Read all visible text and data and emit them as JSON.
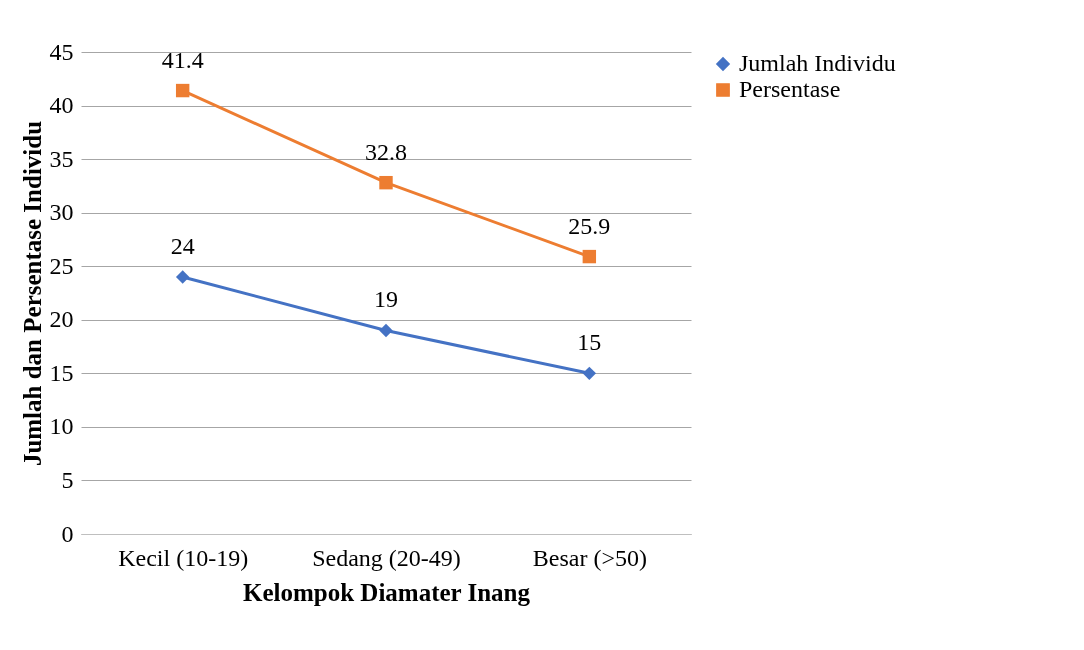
{
  "chart_data": {
    "type": "line",
    "xlabel": "Kelompok Diamater Inang",
    "ylabel": "Jumlah dan Persentase Individu",
    "categories": [
      "Kecil (10-19)",
      "Sedang (20-49)",
      "Besar (>50)"
    ],
    "series": [
      {
        "name": "Jumlah Individu",
        "color": "#4472c4",
        "marker": "diamond",
        "values": [
          24,
          19,
          15
        ]
      },
      {
        "name": "Persentase",
        "color": "#ed7d31",
        "marker": "square",
        "values": [
          41.4,
          32.8,
          25.9
        ]
      }
    ],
    "ylim": [
      0,
      45
    ],
    "yticks": [
      0,
      5,
      10,
      15,
      20,
      25,
      30,
      35,
      40,
      45
    ],
    "grid": "y",
    "legend": "right",
    "data_labels": true,
    "line_style": "solid"
  }
}
